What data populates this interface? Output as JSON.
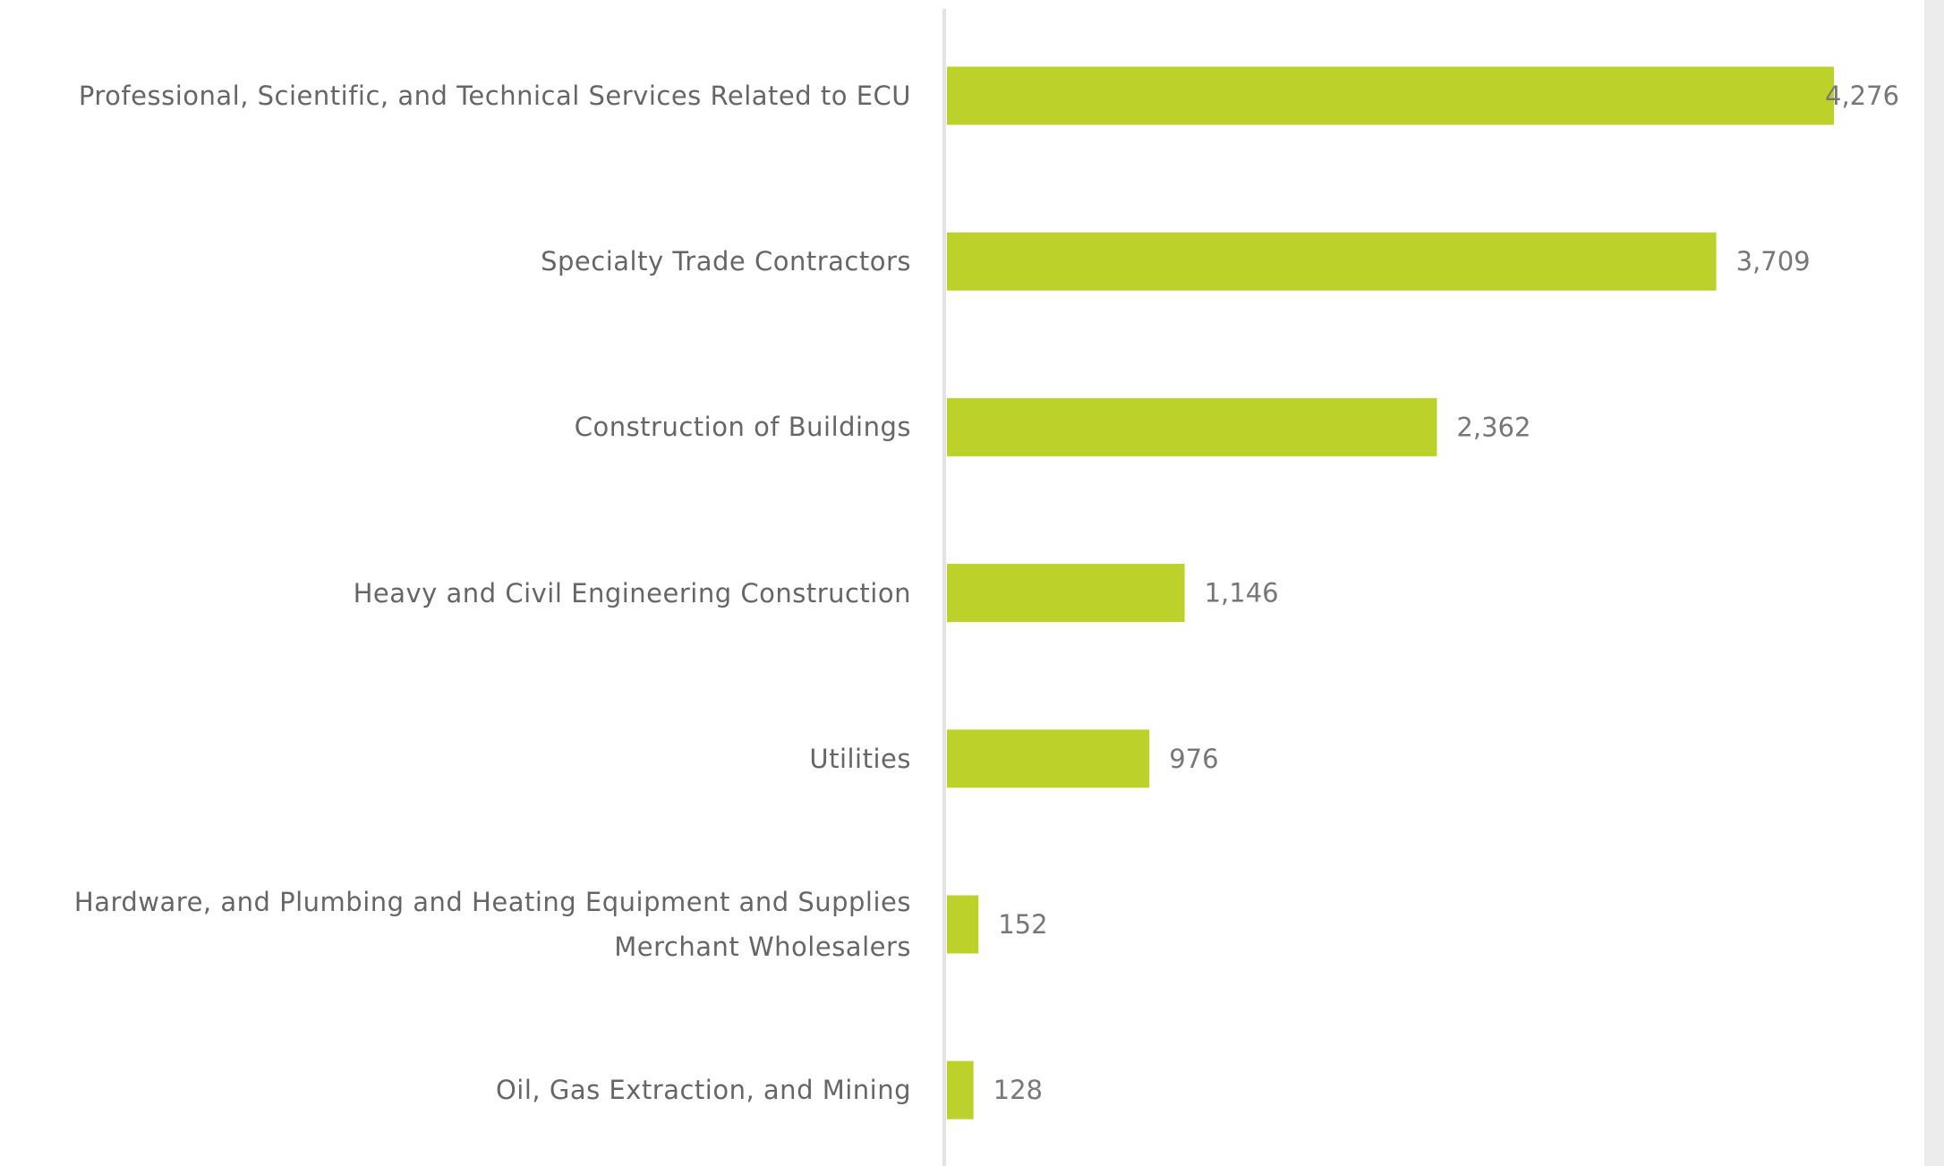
{
  "chart_data": {
    "type": "bar",
    "orientation": "horizontal",
    "categories": [
      "Professional, Scientific, and Technical Services Related to ECU",
      "Specialty Trade Contractors",
      "Construction of Buildings",
      "Heavy and Civil Engineering Construction",
      "Utilities",
      "Hardware, and Plumbing and Heating Equipment and Supplies Merchant Wholesalers",
      "Oil, Gas Extraction, and Mining"
    ],
    "values": [
      4276,
      3709,
      2362,
      1146,
      976,
      152,
      128
    ],
    "value_labels": [
      "4,276",
      "3,709",
      "2,362",
      "1,146",
      "976",
      "152",
      "128"
    ],
    "color": "#bcd12a"
  }
}
